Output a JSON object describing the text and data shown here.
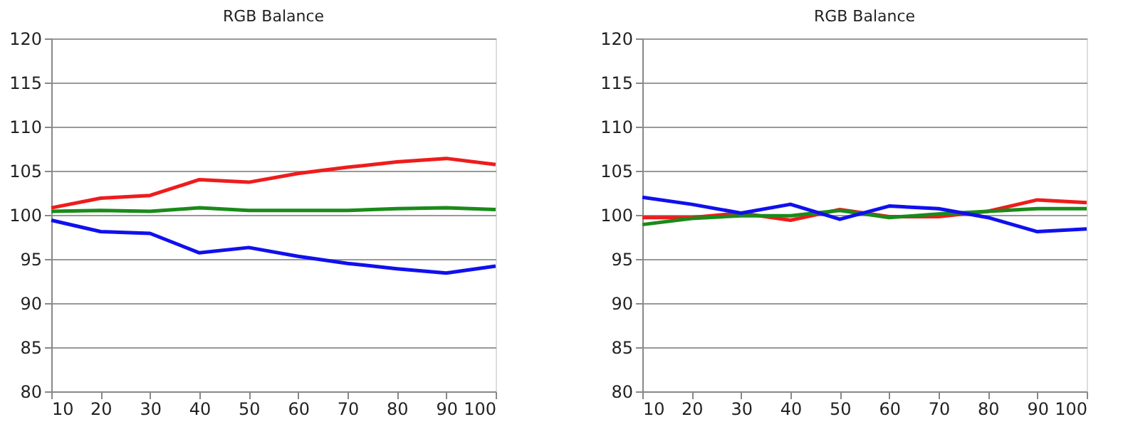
{
  "chart_data": [
    {
      "type": "line",
      "title": "RGB Balance",
      "x": [
        10,
        20,
        30,
        40,
        50,
        60,
        70,
        80,
        90,
        100
      ],
      "xlim": [
        10,
        100
      ],
      "xticks": [
        10,
        20,
        30,
        40,
        50,
        60,
        70,
        80,
        90,
        100
      ],
      "ylim": [
        80,
        120
      ],
      "yticks": [
        80,
        85,
        90,
        95,
        100,
        105,
        110,
        115,
        120
      ],
      "grid": "y",
      "series": [
        {
          "color": "#ee1c1c",
          "values": [
            100.8,
            101.9,
            102.2,
            104.0,
            103.7,
            104.7,
            105.4,
            106.0,
            106.4,
            105.7
          ]
        },
        {
          "color": "#1a8a1a",
          "values": [
            100.4,
            100.5,
            100.4,
            100.8,
            100.5,
            100.5,
            100.5,
            100.7,
            100.8,
            100.6
          ]
        },
        {
          "color": "#1010ee",
          "values": [
            99.4,
            98.1,
            97.9,
            95.7,
            96.3,
            95.3,
            94.5,
            93.9,
            93.4,
            94.2
          ]
        }
      ]
    },
    {
      "type": "line",
      "title": "RGB Balance",
      "x": [
        10,
        20,
        30,
        40,
        50,
        60,
        70,
        80,
        90,
        100
      ],
      "xlim": [
        10,
        100
      ],
      "xticks": [
        10,
        20,
        30,
        40,
        50,
        60,
        70,
        80,
        90,
        100
      ],
      "ylim": [
        80,
        120
      ],
      "yticks": [
        80,
        85,
        90,
        95,
        100,
        105,
        110,
        115,
        120
      ],
      "grid": "y",
      "series": [
        {
          "color": "#ee1c1c",
          "values": [
            99.7,
            99.7,
            100.2,
            99.4,
            100.6,
            99.8,
            99.8,
            100.4,
            101.7,
            101.4
          ]
        },
        {
          "color": "#1a8a1a",
          "values": [
            98.9,
            99.6,
            99.9,
            99.9,
            100.5,
            99.7,
            100.1,
            100.4,
            100.7,
            100.7
          ]
        },
        {
          "color": "#1010ee",
          "values": [
            102.0,
            101.2,
            100.2,
            101.2,
            99.5,
            101.0,
            100.7,
            99.7,
            98.1,
            98.4
          ]
        }
      ]
    }
  ]
}
